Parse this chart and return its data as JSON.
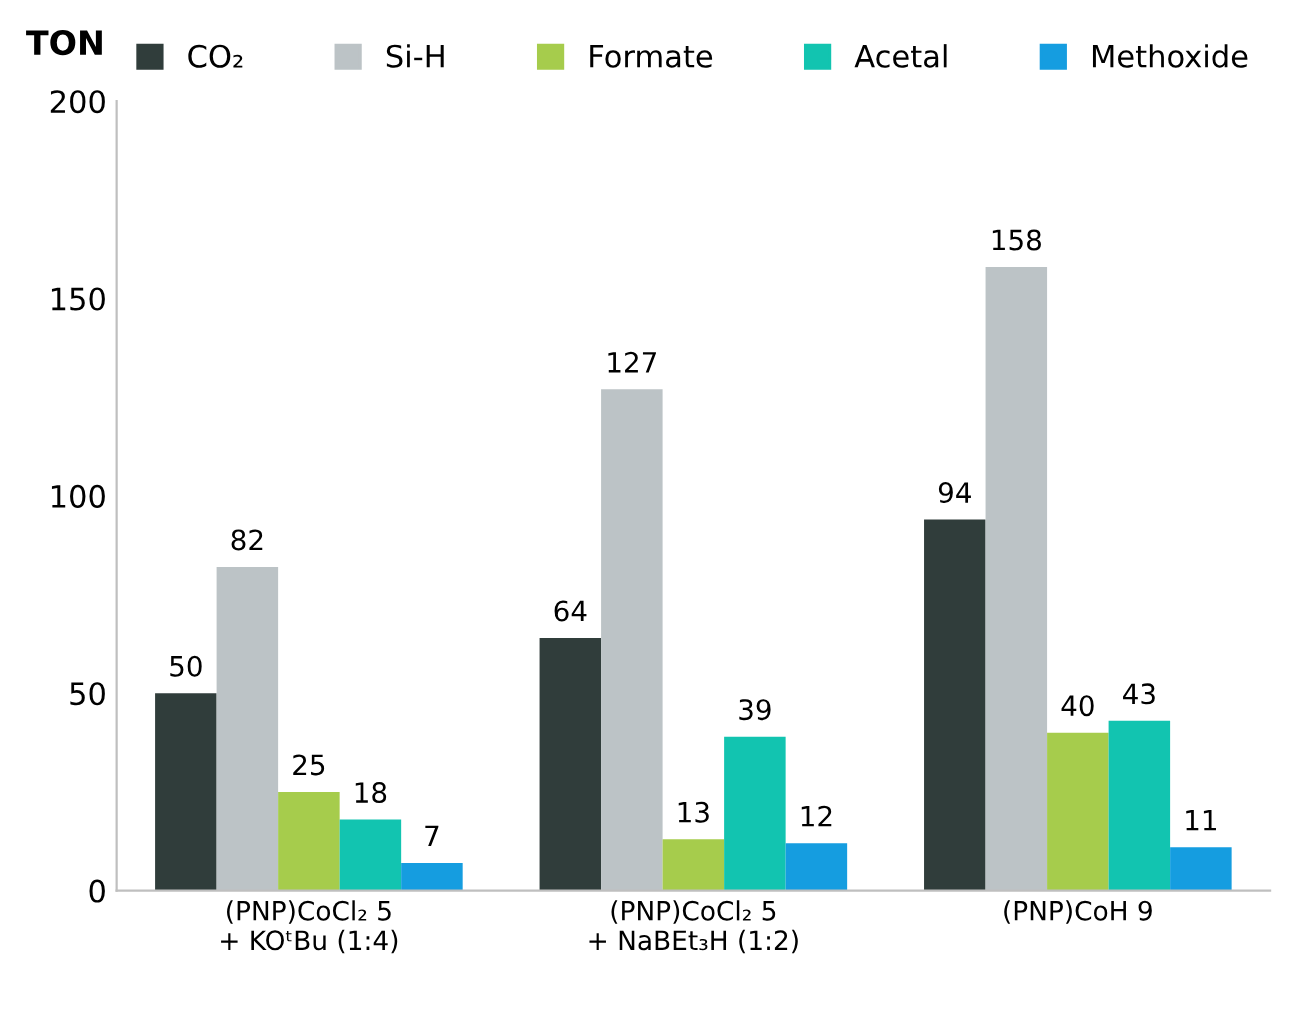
{
  "chart_data": {
    "type": "bar",
    "ylabel": "TON",
    "categories": [
      "(PNP)CoCl₂ 5\n+ KOᵗBu (1:4)",
      "(PNP)CoCl₂ 5\n+ NaBEt₃H (1:2)",
      "(PNP)CoH 9"
    ],
    "series": [
      {
        "name": "CO₂",
        "color": "#303d3b",
        "values": [
          50,
          64,
          94
        ]
      },
      {
        "name": "Si-H",
        "color": "#bcc3c6",
        "values": [
          82,
          127,
          158
        ]
      },
      {
        "name": "Formate",
        "color": "#a6cc4c",
        "values": [
          25,
          13,
          40
        ]
      },
      {
        "name": "Acetal",
        "color": "#12c4b0",
        "values": [
          18,
          39,
          43
        ]
      },
      {
        "name": "Methoxide",
        "color": "#159de0",
        "values": [
          7,
          12,
          11
        ]
      }
    ],
    "ylim": [
      0,
      200
    ],
    "yticks": [
      0,
      50,
      100,
      150,
      200
    ],
    "data_labels": true,
    "legend": "top",
    "grid": false
  }
}
